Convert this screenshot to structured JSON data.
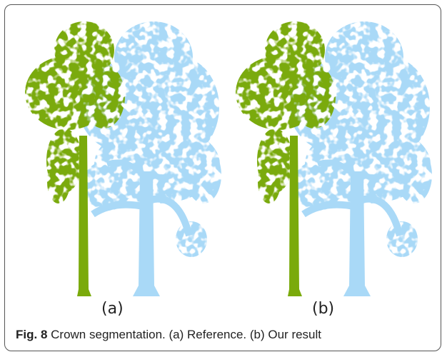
{
  "figure": {
    "panels": [
      {
        "label": "(a)"
      },
      {
        "label": "(b)"
      }
    ],
    "caption": {
      "number": "Fig. 8",
      "text": "Crown segmentation. (a) Reference. (b) Our result"
    }
  }
}
